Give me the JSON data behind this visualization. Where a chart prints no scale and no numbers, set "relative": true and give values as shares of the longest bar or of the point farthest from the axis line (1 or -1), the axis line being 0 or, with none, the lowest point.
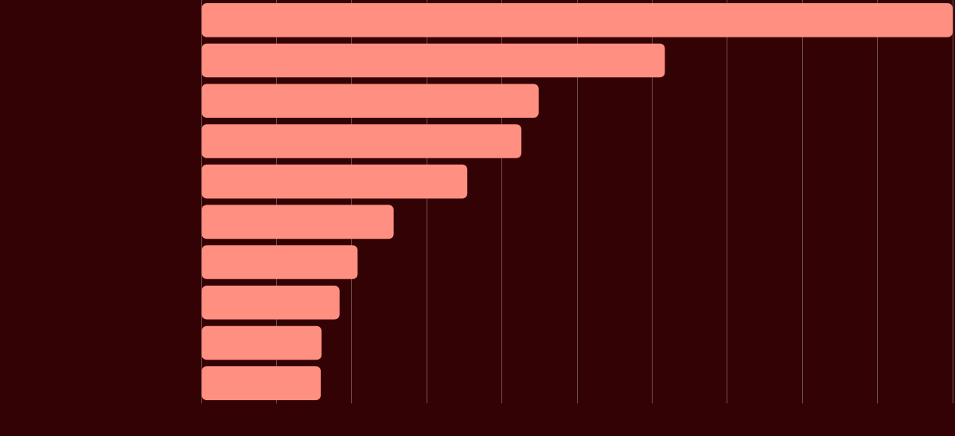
{
  "chart_data": {
    "type": "bar",
    "orientation": "horizontal",
    "relative": true,
    "grid": "x",
    "categories": [
      null,
      null,
      null,
      null,
      null,
      null,
      null,
      null,
      null,
      null
    ],
    "color": "#ff8f80",
    "values": [
      1,
      0.617,
      0.449,
      0.426,
      0.354,
      0.256,
      0.208,
      0.184,
      0.16,
      0.159
    ]
  }
}
